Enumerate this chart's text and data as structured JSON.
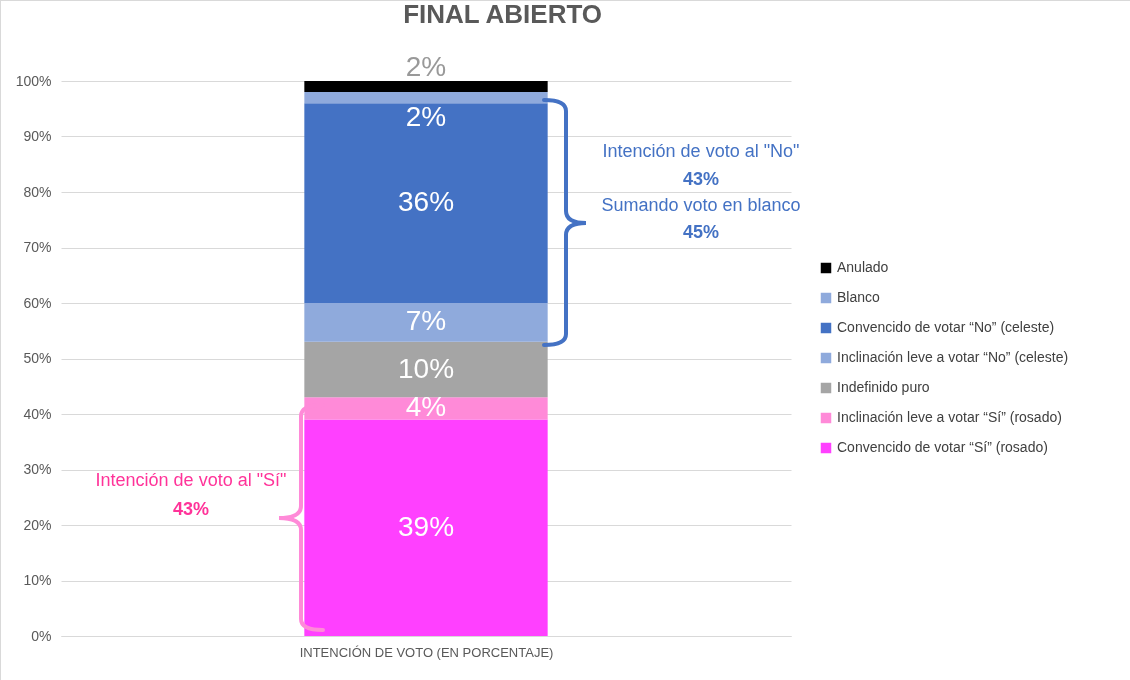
{
  "chart_data": {
    "type": "bar",
    "title": "FINAL ABIERTO",
    "xlabel": "INTENCIÓN DE VOTO (EN PORCENTAJE)",
    "categories": [
      null
    ],
    "stacked": true,
    "grid": "y",
    "legend": "right",
    "ylim": [
      0,
      100
    ],
    "yticks": [
      {
        "value": 0,
        "label": "0%"
      },
      {
        "value": 10,
        "label": "10%"
      },
      {
        "value": 20,
        "label": "20%"
      },
      {
        "value": 30,
        "label": "30%"
      },
      {
        "value": 40,
        "label": "40%"
      },
      {
        "value": 50,
        "label": "50%"
      },
      {
        "value": 60,
        "label": "60%"
      },
      {
        "value": 70,
        "label": "70%"
      },
      {
        "value": 80,
        "label": "80%"
      },
      {
        "value": 90,
        "label": "90%"
      },
      {
        "value": 100,
        "label": "100%"
      }
    ],
    "series": [
      {
        "name": "Convencido de votar “Sí” (rosado)",
        "color": "#ff40ff",
        "values": [
          39
        ],
        "value_labels": [
          "39%"
        ]
      },
      {
        "name": "Inclinación leve a votar “Sí” (rosado)",
        "color": "#ff8ad8",
        "values": [
          4
        ],
        "value_labels": [
          "4%"
        ]
      },
      {
        "name": "Indefinido puro",
        "color": "#a5a5a5",
        "values": [
          10
        ],
        "value_labels": [
          "10%"
        ]
      },
      {
        "name": "Inclinación leve a votar “No” (celeste)",
        "color": "#8faadc",
        "values": [
          7
        ],
        "value_labels": [
          "7%"
        ]
      },
      {
        "name": "Convencido de votar “No” (celeste)",
        "color": "#4472c4",
        "values": [
          36
        ],
        "value_labels": [
          "36%"
        ]
      },
      {
        "name": "Blanco",
        "color": "#8faadc",
        "values": [
          2
        ],
        "value_labels": [
          "2%"
        ]
      },
      {
        "name": "Anulado",
        "color": "#000000",
        "values": [
          2
        ],
        "value_labels": [
          "2%"
        ]
      }
    ],
    "annotations": [
      "Intención de voto al \"No\"",
      "43%",
      "Sumando voto en blanco",
      "45%",
      "Intención de voto al \"Sí\"",
      "43%"
    ]
  }
}
